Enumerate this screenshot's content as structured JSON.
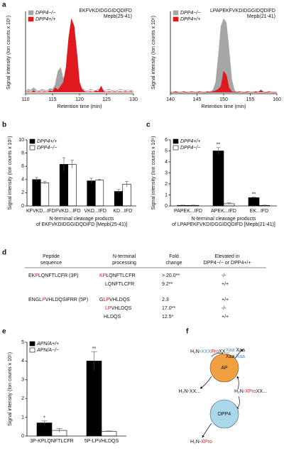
{
  "panel_labels": [
    "a",
    "b",
    "c",
    "d",
    "e",
    "f"
  ],
  "chart_data": [
    {
      "type": "area",
      "title": "EKFVKDIDGGIDQDIFD",
      "subtitle": "Mepb(25-41)",
      "ylabel": "Signal intensity (Ion counts x 10⁵)",
      "xlabel": "Retention time (min)",
      "xlim": [
        110,
        130
      ],
      "xticks": [
        110,
        115,
        120,
        125,
        130
      ],
      "ylim": [
        0,
        1.1
      ],
      "legend": "upper left",
      "x": [
        110,
        110.5,
        111,
        111.5,
        112,
        112.5,
        113,
        113.5,
        114,
        114.5,
        115,
        115.5,
        116,
        116.5,
        117,
        117.5,
        118,
        118.5,
        119,
        119.5,
        120,
        120.5,
        121,
        121.5,
        122,
        122.5,
        123,
        123.5,
        124,
        124.5,
        125,
        125.5,
        126,
        126.5,
        127,
        127.5,
        128,
        128.5,
        129,
        129.5,
        130
      ],
      "series": [
        {
          "name": "DPP4−/−",
          "color": "#a6a6a6",
          "values": [
            0.04,
            0.06,
            0.05,
            0.08,
            0.05,
            0.04,
            0.06,
            0.05,
            0.04,
            0.07,
            0.06,
            0.12,
            0.3,
            0.35,
            0.2,
            0.28,
            0.1,
            0.12,
            0.08,
            0.06,
            0.05,
            0.07,
            0.05,
            0.04,
            0.06,
            0.05,
            0.04,
            0.06,
            0.05,
            0.04,
            0.05,
            0.06,
            0.04,
            0.05,
            0.04,
            0.06,
            0.05,
            0.04,
            0.05,
            0.04,
            0.05
          ]
        },
        {
          "name": "DPP4+/+",
          "color": "#e0191e",
          "values": [
            0.02,
            0.03,
            0.02,
            0.04,
            0.02,
            0.03,
            0.02,
            0.03,
            0.02,
            0.04,
            0.03,
            0.08,
            0.05,
            0.1,
            0.15,
            0.35,
            0.75,
            1.0,
            0.9,
            0.55,
            0.15,
            0.05,
            0.03,
            0.02,
            0.03,
            0.02,
            0.04,
            0.03,
            0.1,
            0.03,
            0.02,
            0.03,
            0.02,
            0.03,
            0.02,
            0.03,
            0.02,
            0.03,
            0.02,
            0.03,
            0.02
          ]
        }
      ]
    },
    {
      "type": "area",
      "title": "LPAPEKFVKDIDGGIDQDIFD",
      "subtitle": "Mepb(21-41)",
      "ylabel": "Signal intensity (Ion counts x 10⁶)",
      "xlabel": "Retention time (min)",
      "xlim": [
        140,
        160
      ],
      "xticks": [
        140,
        145,
        150,
        155,
        160
      ],
      "ylim": [
        0,
        1.1
      ],
      "legend": "upper left",
      "x": [
        140,
        140.5,
        141,
        141.5,
        142,
        142.5,
        143,
        143.5,
        144,
        144.5,
        145,
        145.5,
        146,
        146.5,
        147,
        147.5,
        148,
        148.5,
        149,
        149.5,
        150,
        150.5,
        151,
        151.5,
        152,
        152.5,
        153,
        153.5,
        154,
        154.5,
        155,
        155.5,
        156,
        156.5,
        157,
        157.5,
        158,
        158.5,
        159,
        159.5,
        160
      ],
      "series": [
        {
          "name": "DPP4−/−",
          "color": "#a6a6a6",
          "values": [
            0.01,
            0.01,
            0.02,
            0.01,
            0.01,
            0.01,
            0.02,
            0.01,
            0.01,
            0.01,
            0.02,
            0.01,
            0.01,
            0.02,
            0.02,
            0.03,
            0.05,
            0.15,
            0.5,
            0.9,
            1.0,
            0.95,
            0.6,
            0.2,
            0.05,
            0.02,
            0.01,
            0.01,
            0.02,
            0.01,
            0.01,
            0.01,
            0.02,
            0.01,
            0.01,
            0.01,
            0.02,
            0.01,
            0.01,
            0.01,
            0.01
          ]
        },
        {
          "name": "DPP4+/+",
          "color": "#e0191e",
          "values": [
            0.02,
            0.02,
            0.03,
            0.02,
            0.02,
            0.03,
            0.02,
            0.02,
            0.03,
            0.02,
            0.02,
            0.03,
            0.02,
            0.02,
            0.03,
            0.02,
            0.03,
            0.04,
            0.06,
            0.1,
            0.3,
            0.25,
            0.08,
            0.03,
            0.02,
            0.02,
            0.03,
            0.02,
            0.02,
            0.03,
            0.02,
            0.02,
            0.03,
            0.02,
            0.05,
            0.02,
            0.02,
            0.03,
            0.02,
            0.02,
            0.02
          ]
        }
      ]
    },
    {
      "type": "bar",
      "ylabel": "Signal intensity (Ion counts x 10⁵)",
      "xlabel": [
        "N-terminal cleavage products",
        "of EKFVKDIDGGIDQDIFD [Mepb(25-41)]"
      ],
      "categories": [
        "KFVKD...IFD",
        "FVKD...IFD",
        "VKD...IFD",
        "KD...IFD"
      ],
      "ylim": [
        0,
        10
      ],
      "yticks": [
        0,
        2,
        4,
        6,
        8,
        10
      ],
      "legend": "upper left",
      "series": [
        {
          "name": "DPP4+/+",
          "color": "#000000",
          "values": [
            4.0,
            6.3,
            3.8,
            2.2
          ],
          "errors": [
            0.3,
            1.0,
            0.4,
            0.3
          ]
        },
        {
          "name": "DPP4−/−",
          "color": "#ffffff",
          "values": [
            3.5,
            6.3,
            3.9,
            3.3
          ],
          "errors": [
            0.2,
            0.6,
            0.1,
            0.4
          ]
        }
      ]
    },
    {
      "type": "bar",
      "ylabel": "Signal intensity (Ion counts x 10⁶)",
      "xlabel": [
        "N-terminal cleavage products",
        "of LPAPEKFVKDIDGGIDQDIFD [Mepb(21-41)]"
      ],
      "categories": [
        "PAPEK...IFD",
        "APEK...IFD",
        "EK...IFD"
      ],
      "ylim": [
        0,
        6
      ],
      "yticks": [
        0,
        1,
        2,
        3,
        4,
        5,
        6
      ],
      "legend": "upper left",
      "series": [
        {
          "name": "DPP4+/+",
          "color": "#000000",
          "values": [
            0.05,
            5.0,
            0.75
          ],
          "errors": [
            0.02,
            0.3,
            0.05
          ],
          "significance": [
            null,
            "**",
            "**"
          ]
        },
        {
          "name": "DPP4−/−",
          "color": "#ffffff",
          "values": [
            0.05,
            0.2,
            0.05
          ],
          "errors": [
            0.02,
            0.08,
            0.02
          ]
        }
      ]
    },
    {
      "type": "bar",
      "ylabel": "Signal intensity (Ion counts x 10⁵)",
      "categories": [
        "3P-KPLQNFTLCFR",
        "5P-LPVHLDQS"
      ],
      "ylim": [
        0,
        5
      ],
      "yticks": [
        0,
        1,
        2,
        3,
        4,
        5
      ],
      "legend": "upper left",
      "series": [
        {
          "name": "APN/A+/+",
          "color": "#000000",
          "values": [
            0.7,
            4.0
          ],
          "errors": [
            0.1,
            0.5
          ],
          "significance": [
            "*",
            "**"
          ]
        },
        {
          "name": "APN/A−/−",
          "color": "#ffffff",
          "values": [
            0.3,
            0.25
          ],
          "errors": [
            0.1,
            0.02
          ]
        }
      ]
    }
  ],
  "table": {
    "headers": [
      [
        "Peptide",
        "sequence"
      ],
      [
        "N-terminal",
        "processing"
      ],
      [
        "Fold",
        "change"
      ],
      [
        "Elevated in",
        "DPP4−/− or DPP4+/+"
      ]
    ],
    "rows": [
      {
        "peptide": [
          {
            "text": "EK"
          },
          {
            "text": "P",
            "color": "#e0191e"
          },
          {
            "text": "LQNFTLCFR (3P)"
          }
        ],
        "processing": [
          {
            "text": "KP",
            "color": "#e0191e"
          },
          {
            "text": "LQNFTLCFR"
          }
        ],
        "fold": "> 20.0**",
        "elevated": "-/-"
      },
      {
        "processing": [
          {
            "text": "LQNFTLCFR"
          }
        ],
        "fold": "9.2**",
        "elevated": "+/+"
      },
      {
        "peptide": [
          {
            "text": "ENGL"
          },
          {
            "text": "P",
            "color": "#e0191e"
          },
          {
            "text": "VHLDQSIFRR (5P)"
          }
        ],
        "processing": [
          {
            "text": "G"
          },
          {
            "text": "LP",
            "color": "#e0191e"
          },
          {
            "text": "VHLDQS"
          }
        ],
        "fold": "2.3",
        "elevated": "+/+"
      },
      {
        "processing": [
          {
            "text": "LP",
            "color": "#e0191e"
          },
          {
            "text": "VHLDQS"
          }
        ],
        "fold": "17.0**",
        "elevated": "-/-"
      },
      {
        "processing": [
          {
            "text": "HLDQS"
          }
        ],
        "fold": "12.5*",
        "elevated": "+/+"
      }
    ]
  },
  "diagram": {
    "nodes": [
      {
        "label": "AP",
        "color": "#f0a040"
      },
      {
        "label": "DPP4",
        "color": "#a8d8ea"
      }
    ],
    "texts": [
      [
        {
          "text": "H₂N-"
        },
        {
          "text": "XXX",
          "color": "#3a8fd8"
        },
        {
          "text": "Pro",
          "color": "#e0191e"
        },
        {
          "text": "XX..."
        }
      ],
      [
        {
          "text": "Xaa",
          "color": "#3a8fd8"
        },
        {
          "text": " Xaa"
        }
      ],
      [
        {
          "text": "Xaa "
        },
        {
          "text": "Xaa",
          "color": "#3a8fd8"
        }
      ],
      [
        {
          "text": "H₂N-XX..."
        }
      ],
      [
        {
          "text": "H₂N-"
        },
        {
          "text": "XPro",
          "color": "#e0191e"
        },
        {
          "text": "XX..."
        }
      ],
      [
        {
          "text": "H₂N-"
        },
        {
          "text": "XPro",
          "color": "#e0191e"
        }
      ]
    ]
  }
}
